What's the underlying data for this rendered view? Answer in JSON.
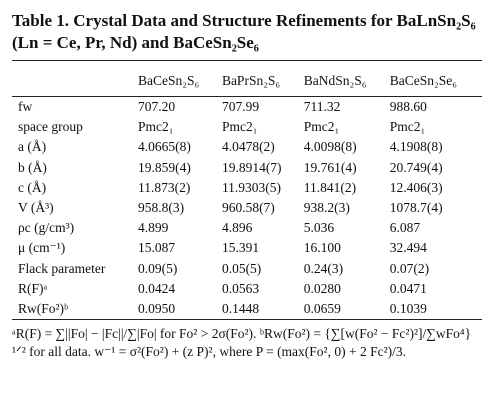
{
  "title": "Table 1. Crystal Data and Structure Refinements for BaLnSn₂S₆ (Ln = Ce, Pr, Nd) and BaCeSn₂Se₆",
  "table": {
    "header": [
      "",
      "BaCeSn₂S₆",
      "BaPrSn₂S₆",
      "BaNdSn₂S₆",
      "BaCeSn₂Se₆"
    ],
    "rows": [
      [
        "fw",
        "707.20",
        "707.99",
        "711.32",
        "988.60"
      ],
      [
        "space group",
        "Pmc2₁",
        "Pmc2₁",
        "Pmc2₁",
        "Pmc2₁"
      ],
      [
        "a (Å)",
        "4.0665(8)",
        "4.0478(2)",
        "4.0098(8)",
        "4.1908(8)"
      ],
      [
        "b (Å)",
        "19.859(4)",
        "19.8914(7)",
        "19.761(4)",
        "20.749(4)"
      ],
      [
        "c (Å)",
        "11.873(2)",
        "11.9303(5)",
        "11.841(2)",
        "12.406(3)"
      ],
      [
        "V (Å³)",
        "958.8(3)",
        "960.58(7)",
        "938.2(3)",
        "1078.7(4)"
      ],
      [
        "ρc (g/cm³)",
        "4.899",
        "4.896",
        "5.036",
        "6.087"
      ],
      [
        "μ (cm⁻¹)",
        "15.087",
        "15.391",
        "16.100",
        "32.494"
      ],
      [
        "Flack parameter",
        "0.09(5)",
        "0.05(5)",
        "0.24(3)",
        "0.07(2)"
      ],
      [
        "R(F)ᵃ",
        "0.0424",
        "0.0563",
        "0.0280",
        "0.0471"
      ],
      [
        "Rw(Fo²)ᵇ",
        "0.0950",
        "0.1448",
        "0.0659",
        "0.1039"
      ]
    ]
  },
  "footnote": "ᵃR(F) = ∑||Fo| − |Fc||/∑|Fo| for Fo² > 2σ(Fo²). ᵇRw(Fo²) = {∑[w(Fo² − Fc²)²]/∑wFo⁴}¹ᐟ² for all data. w⁻¹ = σ²(Fo²) + (z P)², where P = (max(Fo², 0) + 2 Fc²)/3."
}
